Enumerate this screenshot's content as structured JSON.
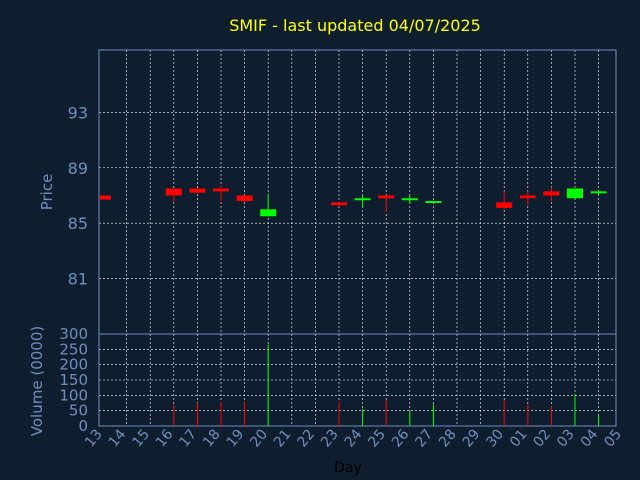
{
  "chart_data": {
    "type": "candlestick",
    "title": "SMIF - last updated 04/07/2025",
    "price_ylabel": "Price",
    "volume_ylabel": "Volume (0000)",
    "xlabel": "Day",
    "price_ylim": [
      77,
      97.5
    ],
    "price_yticks": [
      "93",
      "89",
      "85",
      "81"
    ],
    "volume_ylim": [
      0,
      300
    ],
    "volume_yticks": [
      "300",
      "250",
      "200",
      "150",
      "100",
      "50",
      "0"
    ],
    "x_tick_labels": [
      "13",
      "14",
      "15",
      "16",
      "17",
      "18",
      "19",
      "20",
      "21",
      "22",
      "23",
      "24",
      "25",
      "26",
      "27",
      "28",
      "29",
      "30",
      "01",
      "02",
      "03",
      "04",
      "05"
    ],
    "grid": true,
    "colors": {
      "background": "#0f1e2e",
      "up": "#00ff00",
      "down": "#ff0000",
      "title": "#ffff00",
      "axis_text": "#6f8fbf",
      "grid": "#ffffff"
    },
    "candles": [
      {
        "day": "13",
        "open": 87.0,
        "high": 87.0,
        "low": 86.7,
        "close": 86.7,
        "volume": 0
      },
      {
        "day": "16",
        "open": 87.5,
        "high": 87.5,
        "low": 86.5,
        "close": 87.0,
        "volume": 70
      },
      {
        "day": "17",
        "open": 87.5,
        "high": 87.5,
        "low": 87.2,
        "close": 87.2,
        "volume": 75
      },
      {
        "day": "18",
        "open": 87.5,
        "high": 87.7,
        "low": 86.6,
        "close": 87.3,
        "volume": 78
      },
      {
        "day": "19",
        "open": 87.0,
        "high": 87.0,
        "low": 86.5,
        "close": 86.6,
        "volume": 80
      },
      {
        "day": "20",
        "open": 85.5,
        "high": 87.0,
        "low": 85.5,
        "close": 86.0,
        "volume": 265
      },
      {
        "day": "23",
        "open": 86.5,
        "high": 86.5,
        "low": 86.2,
        "close": 86.3,
        "volume": 80
      },
      {
        "day": "24",
        "open": 86.7,
        "high": 87.0,
        "low": 86.1,
        "close": 86.8,
        "volume": 55
      },
      {
        "day": "25",
        "open": 87.0,
        "high": 87.0,
        "low": 85.8,
        "close": 86.8,
        "volume": 85
      },
      {
        "day": "26",
        "open": 86.7,
        "high": 87.0,
        "low": 86.4,
        "close": 86.8,
        "volume": 50
      },
      {
        "day": "27",
        "open": 86.5,
        "high": 86.6,
        "low": 86.4,
        "close": 86.6,
        "volume": 70
      },
      {
        "day": "30",
        "open": 86.5,
        "high": 87.3,
        "low": 86.0,
        "close": 86.1,
        "volume": 85
      },
      {
        "day": "01",
        "open": 87.0,
        "high": 87.3,
        "low": 86.3,
        "close": 86.8,
        "volume": 70
      },
      {
        "day": "02",
        "open": 87.3,
        "high": 87.6,
        "low": 86.6,
        "close": 87.0,
        "volume": 65
      },
      {
        "day": "03",
        "open": 86.8,
        "high": 87.5,
        "low": 86.8,
        "close": 87.5,
        "volume": 105
      },
      {
        "day": "04",
        "open": 87.3,
        "high": 87.4,
        "low": 87.0,
        "close": 87.3,
        "volume": 35
      }
    ]
  }
}
